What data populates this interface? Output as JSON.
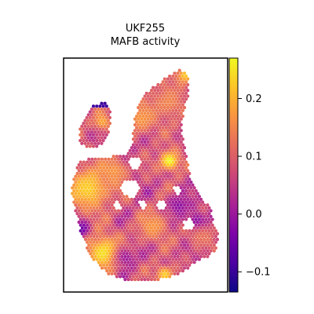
{
  "chart_data": {
    "type": "heatmap",
    "title_line1": "UKF255",
    "title_line2": "MAFB activity",
    "colormap": "plasma",
    "colorbar": {
      "vmin": -0.135,
      "vmax": 0.27,
      "ticks": [
        {
          "value": 0.2,
          "label": "0.2"
        },
        {
          "value": 0.1,
          "label": "0.1"
        },
        {
          "value": 0.0,
          "label": "0.0"
        },
        {
          "value": -0.1,
          "label": "−0.1"
        }
      ],
      "placement": "right"
    },
    "axes": {
      "x_ticks": false,
      "y_ticks": false,
      "grid": false
    }
  }
}
